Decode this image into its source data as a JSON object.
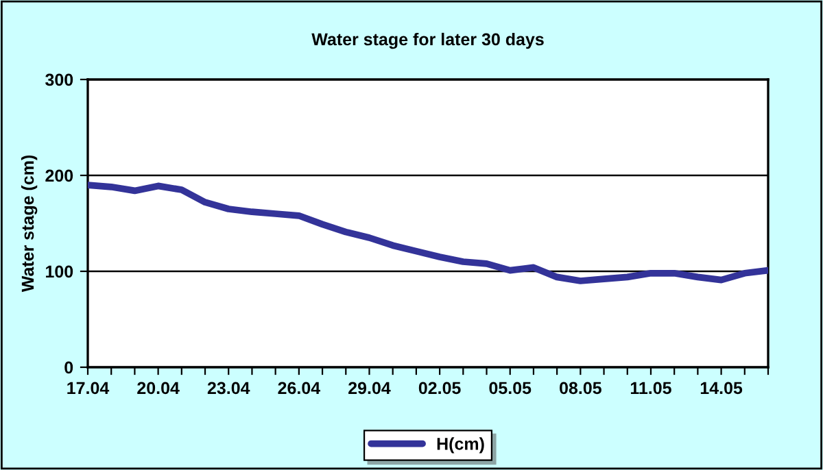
{
  "chart_data": {
    "type": "line",
    "title": "Water stage for later 30 days",
    "ylabel": "Water stage (cm)",
    "categories": [
      "17.04",
      null,
      null,
      "20.04",
      null,
      null,
      "23.04",
      null,
      null,
      "26.04",
      null,
      null,
      "29.04",
      null,
      null,
      "02.05",
      null,
      null,
      "05.05",
      null,
      null,
      "08.05",
      null,
      null,
      "11.05",
      null,
      null,
      "14.05",
      null,
      null
    ],
    "series": [
      {
        "name": "H(cm)",
        "color": "#333399",
        "values": [
          190,
          188,
          184,
          189,
          185,
          172,
          165,
          162,
          160,
          158,
          149,
          141,
          135,
          127,
          121,
          115,
          110,
          108,
          101,
          104,
          94,
          90,
          92,
          94,
          98,
          98,
          94,
          91,
          98,
          101
        ]
      }
    ],
    "ylim": [
      0,
      300
    ],
    "yticks": [
      0,
      100,
      200,
      300
    ],
    "grid": "y",
    "legend": "bottom",
    "marker": "none",
    "line_style": "solid"
  }
}
